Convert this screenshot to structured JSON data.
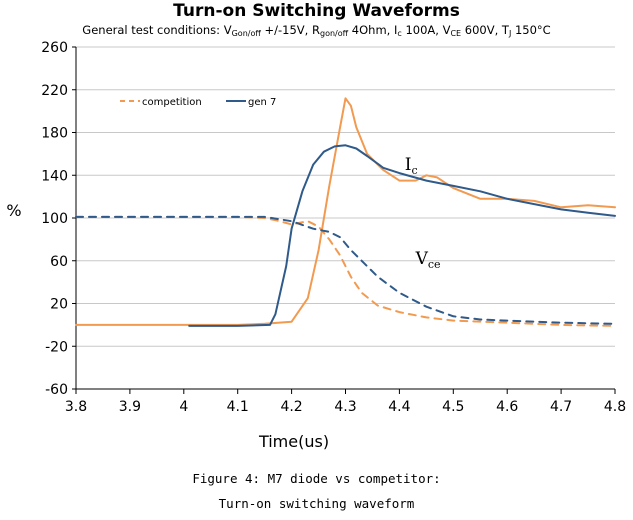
{
  "chart_data": {
    "type": "line",
    "title": "Turn-on Switching Waveforms",
    "subtitle": {
      "prefix": "General test conditions: ",
      "parts": [
        {
          "text": "V",
          "sub": "Gon/off",
          "value": " +/-15V, "
        },
        {
          "text": "R",
          "sub": "gon/off",
          "value": " 4Ohm, "
        },
        {
          "text": "I",
          "sub": "c",
          "value": " 100A, "
        },
        {
          "text": "V",
          "sub": "CE",
          "value": " 600V, "
        },
        {
          "text": "T",
          "sub": "J",
          "value": " 150°C"
        }
      ]
    },
    "xlabel": "Time(us)",
    "ylabel": "%",
    "xlim": [
      3.8,
      4.8
    ],
    "ylim": [
      -60,
      260
    ],
    "xticks": [
      "3.8",
      "3.9",
      "4",
      "4.1",
      "4.2",
      "4.3",
      "4.4",
      "4.5",
      "4.6",
      "4.7",
      "4.8"
    ],
    "yticks": [
      "260",
      "220",
      "180",
      "140",
      "100",
      "60",
      "20",
      "-20",
      "-60"
    ],
    "grid": "horizontal",
    "legend": {
      "placement": "top-left",
      "entries": [
        {
          "name": "competition",
          "color": "#f29a50",
          "style": "dashed"
        },
        {
          "name": "gen 7",
          "color": "#2f5a8a",
          "style": "solid"
        }
      ]
    },
    "annotations": [
      {
        "base": "I",
        "sub": "c",
        "x": 4.41,
        "y": 145
      },
      {
        "base": "V",
        "sub": "ce",
        "x": 4.43,
        "y": 57
      }
    ],
    "series": [
      {
        "name": "competition",
        "quantity": "Ic",
        "color": "#f29a50",
        "dashed": false,
        "x": [
          3.8,
          4.0,
          4.1,
          4.15,
          4.2,
          4.23,
          4.25,
          4.27,
          4.29,
          4.3,
          4.31,
          4.32,
          4.34,
          4.37,
          4.4,
          4.43,
          4.45,
          4.47,
          4.5,
          4.55,
          4.6,
          4.65,
          4.7,
          4.75,
          4.8
        ],
        "y": [
          0,
          0,
          0,
          1,
          3,
          25,
          70,
          130,
          185,
          212,
          205,
          185,
          160,
          145,
          135,
          135,
          140,
          138,
          128,
          118,
          118,
          116,
          110,
          112,
          110
        ]
      },
      {
        "name": "gen 7",
        "quantity": "Ic",
        "color": "#2f5a8a",
        "dashed": false,
        "x": [
          4.01,
          4.1,
          4.16,
          4.17,
          4.19,
          4.2,
          4.22,
          4.24,
          4.26,
          4.28,
          4.3,
          4.32,
          4.34,
          4.37,
          4.4,
          4.45,
          4.5,
          4.55,
          4.6,
          4.65,
          4.7,
          4.75,
          4.8
        ],
        "y": [
          -1,
          -1,
          0,
          10,
          55,
          90,
          125,
          150,
          162,
          167,
          168,
          165,
          158,
          147,
          142,
          135,
          130,
          125,
          118,
          113,
          108,
          105,
          102
        ]
      },
      {
        "name": "competition",
        "quantity": "Vce",
        "color": "#f29a50",
        "dashed": true,
        "x": [
          3.8,
          4.0,
          4.1,
          4.15,
          4.17,
          4.2,
          4.23,
          4.25,
          4.27,
          4.29,
          4.31,
          4.33,
          4.36,
          4.4,
          4.45,
          4.5,
          4.6,
          4.7,
          4.8
        ],
        "y": [
          101,
          101,
          101,
          100,
          98,
          94,
          97,
          92,
          80,
          65,
          45,
          30,
          18,
          12,
          7,
          4,
          2,
          0,
          -1
        ]
      },
      {
        "name": "gen 7",
        "quantity": "Vce",
        "color": "#2f5a8a",
        "dashed": true,
        "x": [
          3.8,
          4.0,
          4.1,
          4.15,
          4.2,
          4.24,
          4.27,
          4.29,
          4.31,
          4.33,
          4.36,
          4.4,
          4.45,
          4.5,
          4.55,
          4.6,
          4.7,
          4.8
        ],
        "y": [
          101,
          101,
          101,
          101,
          97,
          90,
          87,
          82,
          70,
          60,
          45,
          30,
          17,
          8,
          5,
          4,
          2,
          1
        ]
      }
    ]
  },
  "caption": {
    "line1": "Figure 4: M7 diode vs competitor:",
    "line2": "Turn-on switching waveform"
  }
}
